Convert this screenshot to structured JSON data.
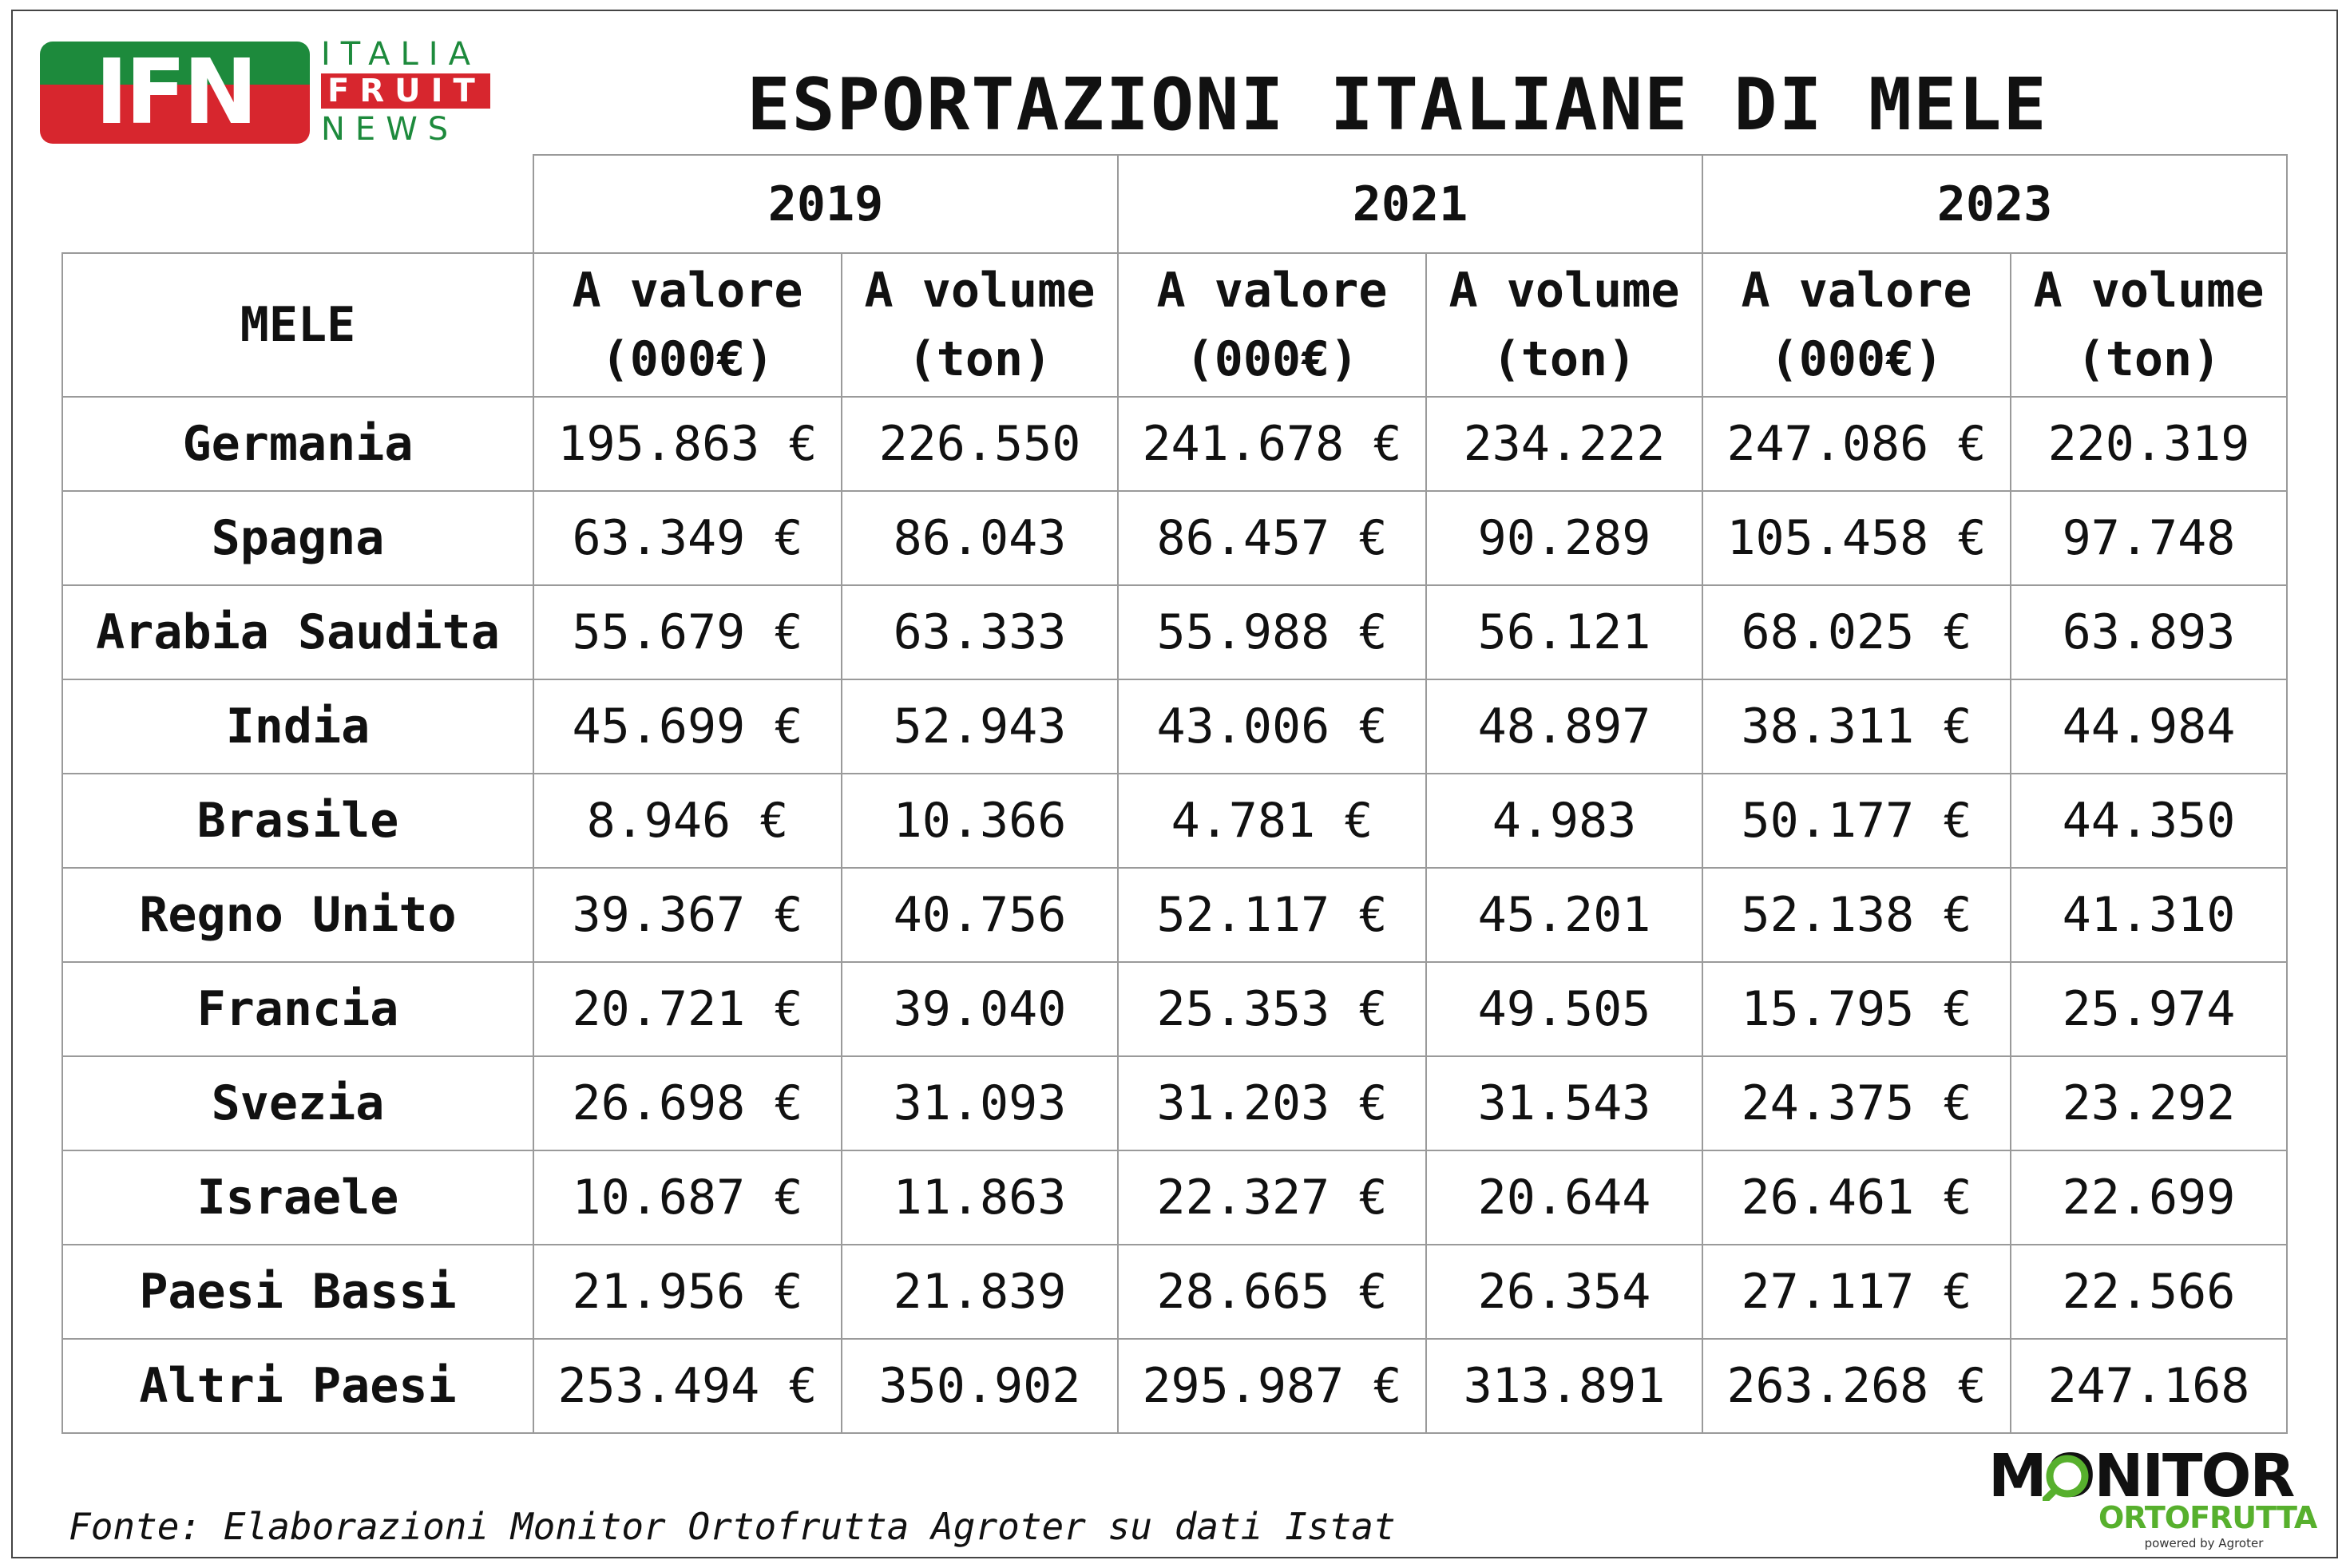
{
  "logo_ifn": {
    "mark": "IFN",
    "words": [
      "ITALIA",
      "FRUIT",
      "NEWS"
    ],
    "colors": {
      "green": "#1d8a3c",
      "red": "#d7262e"
    }
  },
  "title": "ESPORTAZIONI ITALIANE DI MELE",
  "table": {
    "years": [
      "2019",
      "2021",
      "2023"
    ],
    "row_header": "MELE",
    "sub_headers": [
      {
        "line1": "A valore",
        "line2": "(000€)"
      },
      {
        "line1": "A volume",
        "line2": "(ton)"
      },
      {
        "line1": "A valore",
        "line2": "(000€)"
      },
      {
        "line1": "A volume",
        "line2": "(ton)"
      },
      {
        "line1": "A valore",
        "line2": "(000€)"
      },
      {
        "line1": "A volume",
        "line2": "(ton)"
      }
    ],
    "rows": [
      {
        "country": "Germania",
        "cells": [
          "195.863 €",
          "226.550",
          "241.678 €",
          "234.222",
          "247.086 €",
          "220.319"
        ]
      },
      {
        "country": "Spagna",
        "cells": [
          "63.349 €",
          "86.043",
          "86.457 €",
          "90.289",
          "105.458 €",
          "97.748"
        ]
      },
      {
        "country": "Arabia Saudita",
        "cells": [
          "55.679 €",
          "63.333",
          "55.988 €",
          "56.121",
          "68.025 €",
          "63.893"
        ]
      },
      {
        "country": "India",
        "cells": [
          "45.699 €",
          "52.943",
          "43.006 €",
          "48.897",
          "38.311 €",
          "44.984"
        ]
      },
      {
        "country": "Brasile",
        "cells": [
          "8.946 €",
          "10.366",
          "4.781 €",
          "4.983",
          "50.177 €",
          "44.350"
        ]
      },
      {
        "country": "Regno Unito",
        "cells": [
          "39.367 €",
          "40.756",
          "52.117 €",
          "45.201",
          "52.138 €",
          "41.310"
        ]
      },
      {
        "country": "Francia",
        "cells": [
          "20.721 €",
          "39.040",
          "25.353 €",
          "49.505",
          "15.795 €",
          "25.974"
        ]
      },
      {
        "country": "Svezia",
        "cells": [
          "26.698 €",
          "31.093",
          "31.203 €",
          "31.543",
          "24.375 €",
          "23.292"
        ]
      },
      {
        "country": "Israele",
        "cells": [
          "10.687 €",
          "11.863",
          "22.327 €",
          "20.644",
          "26.461 €",
          "22.699"
        ]
      },
      {
        "country": "Paesi Bassi",
        "cells": [
          "21.956 €",
          "21.839",
          "28.665 €",
          "26.354",
          "27.117 €",
          "22.566"
        ]
      },
      {
        "country": "Altri Paesi",
        "cells": [
          "253.494 €",
          "350.902",
          "295.987 €",
          "313.891",
          "263.268 €",
          "247.168"
        ]
      }
    ]
  },
  "source": "Fonte: Elaborazioni Monitor Ortofrutta Agroter su dati Istat",
  "logo_monitor": {
    "word1": "MONITOR",
    "word2": "ORTOFRUTTA",
    "tagline": "powered by Agroter",
    "accent": "#57b02d"
  }
}
